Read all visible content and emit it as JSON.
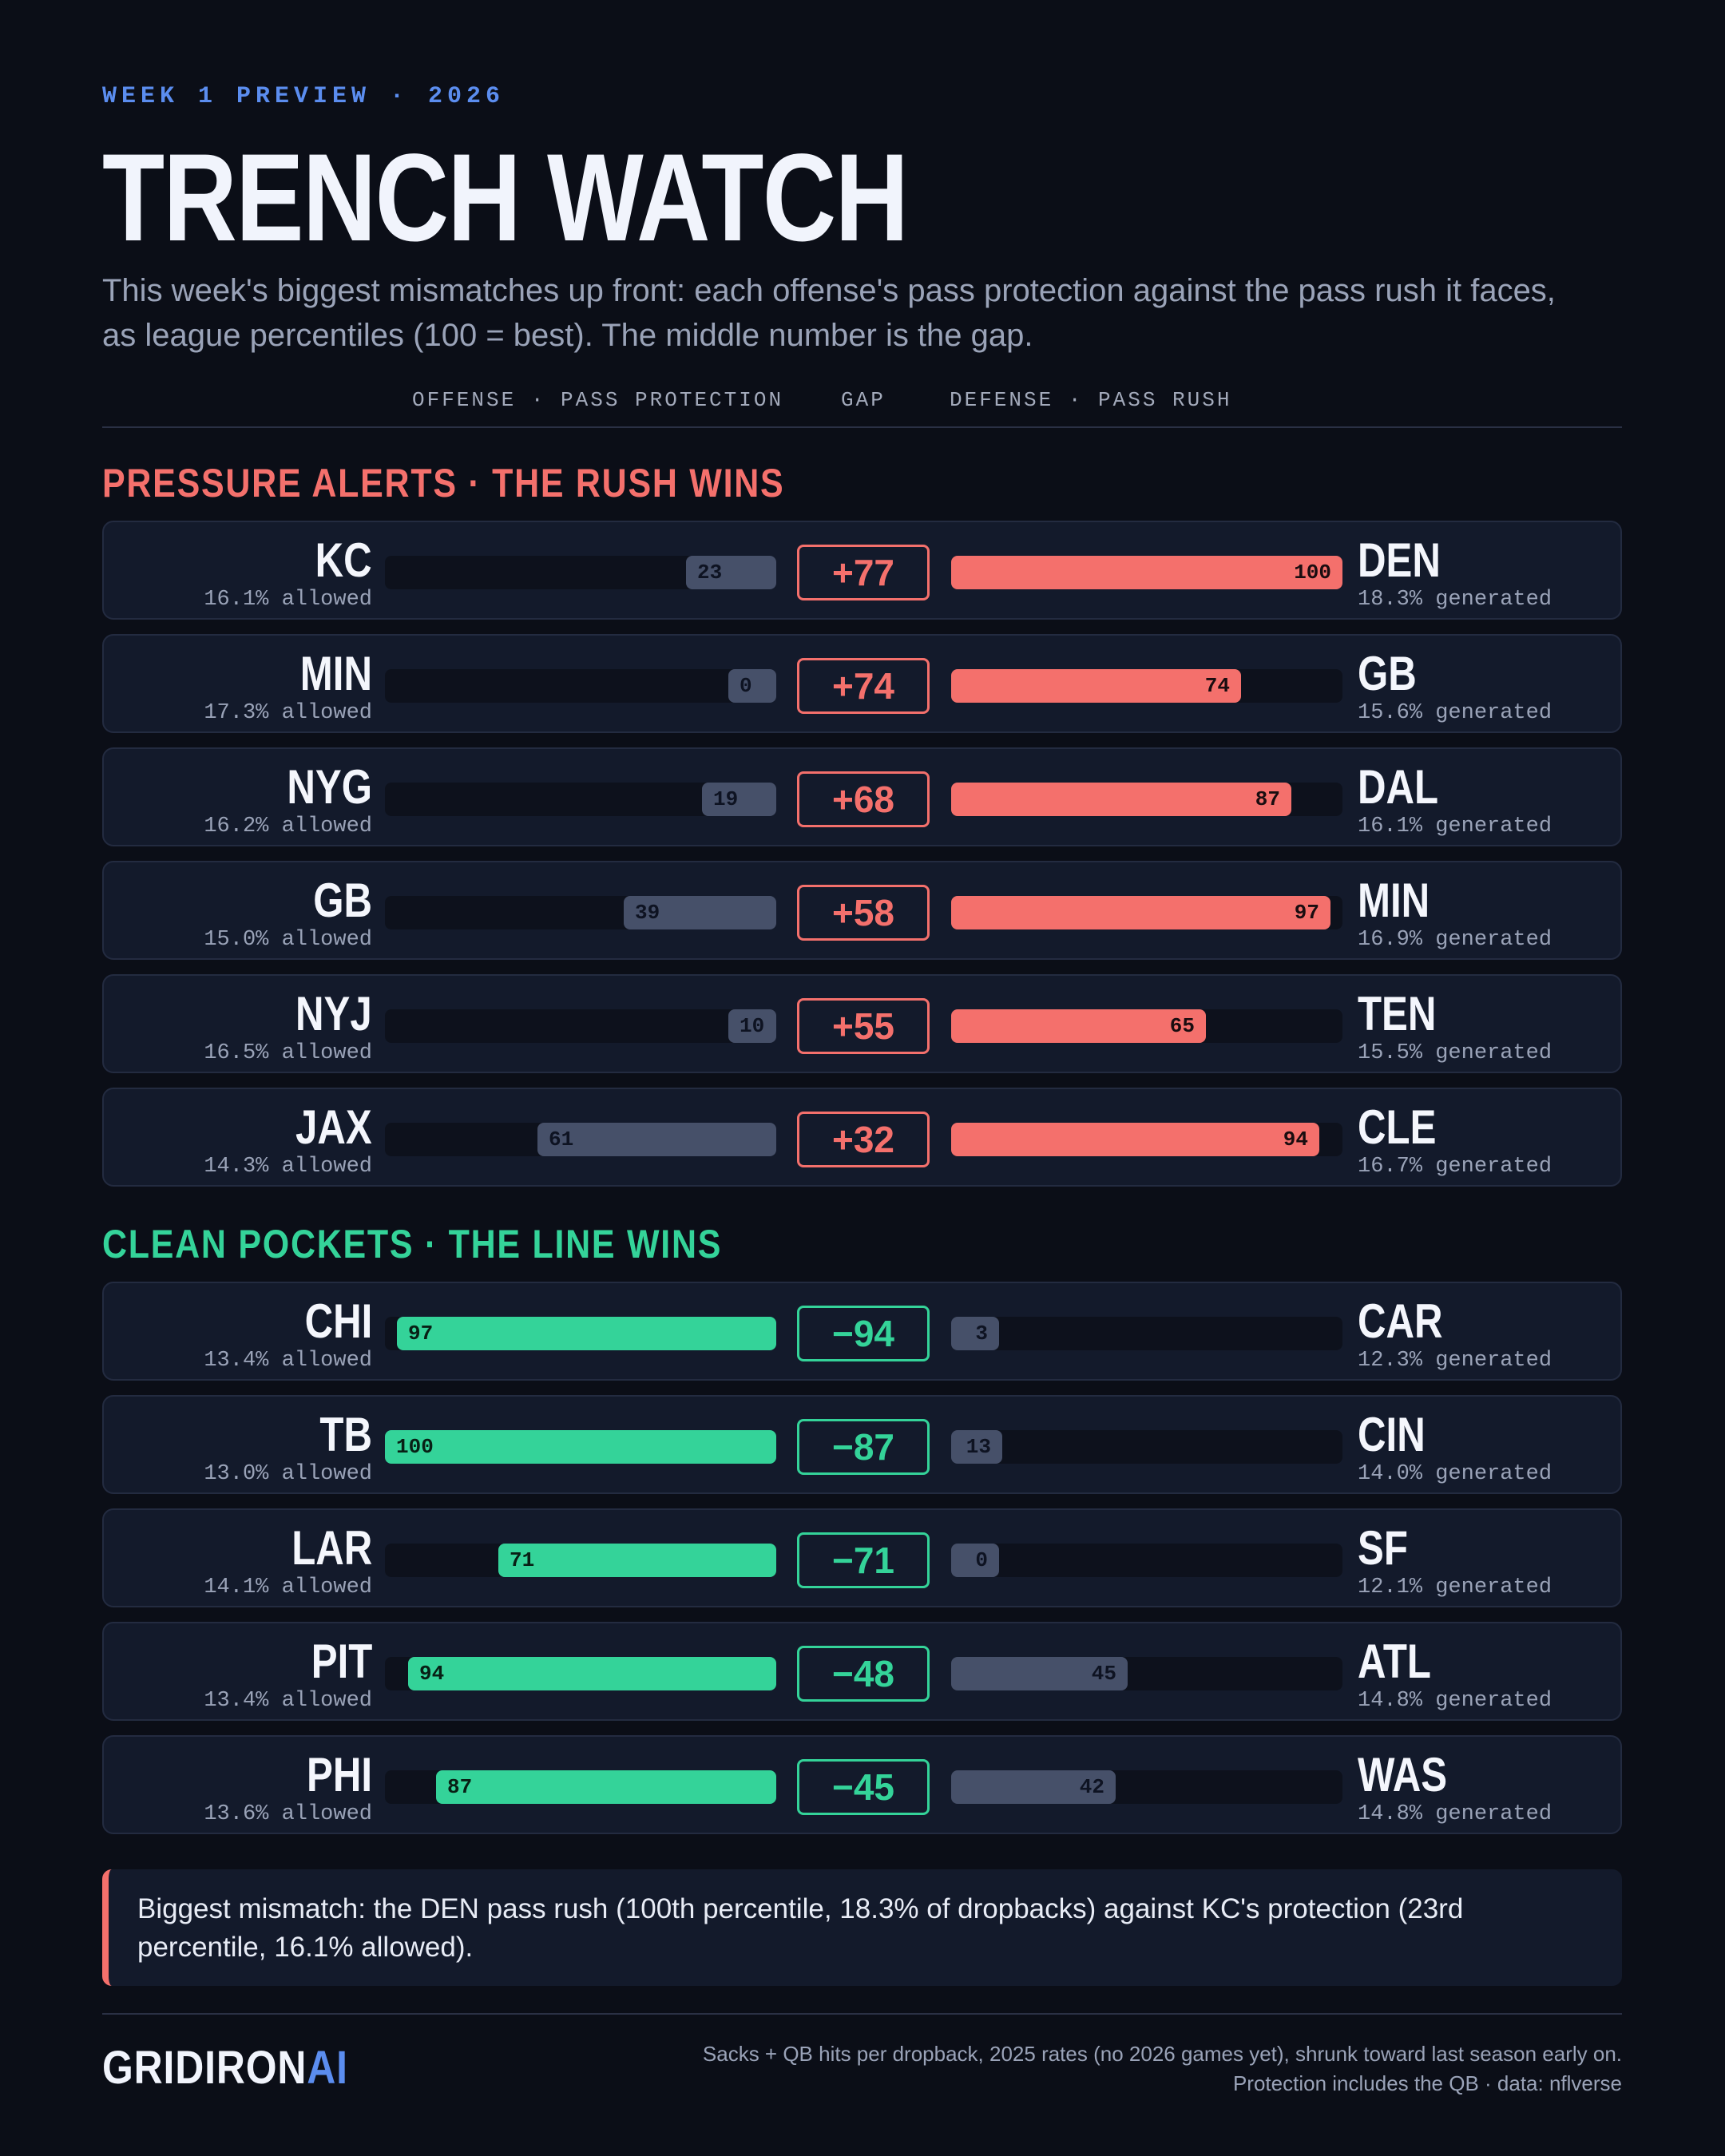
{
  "header": {
    "eyebrow": "WEEK 1 PREVIEW · 2026",
    "title": "TRENCH WATCH",
    "subtitle": "This week's biggest mismatches up front: each offense's pass protection against the pass rush it faces, as league percentiles (100 = best). The middle number is the gap."
  },
  "columns": {
    "offense": "OFFENSE · PASS PROTECTION",
    "gap": "GAP",
    "defense": "DEFENSE · PASS RUSH"
  },
  "colors": {
    "background": "#0b0e17",
    "card": "#131a2b",
    "rush_wins": "#f4706c",
    "line_wins": "#34d399",
    "neutral_bar": "#465069",
    "accent": "#5b8def"
  },
  "chart_data": {
    "type": "bar",
    "scale": [
      0,
      100
    ],
    "sections": [
      {
        "title": "PRESSURE ALERTS · THE RUSH WINS",
        "winner": "defense",
        "rows": [
          {
            "offense": "KC",
            "off_rate": "16.1% allowed",
            "off_pct": 23,
            "gap": "+77",
            "defense": "DEN",
            "def_rate": "18.3% generated",
            "def_pct": 100
          },
          {
            "offense": "MIN",
            "off_rate": "17.3% allowed",
            "off_pct": 0,
            "gap": "+74",
            "defense": "GB",
            "def_rate": "15.6% generated",
            "def_pct": 74
          },
          {
            "offense": "NYG",
            "off_rate": "16.2% allowed",
            "off_pct": 19,
            "gap": "+68",
            "defense": "DAL",
            "def_rate": "16.1% generated",
            "def_pct": 87
          },
          {
            "offense": "GB",
            "off_rate": "15.0% allowed",
            "off_pct": 39,
            "gap": "+58",
            "defense": "MIN",
            "def_rate": "16.9% generated",
            "def_pct": 97
          },
          {
            "offense": "NYJ",
            "off_rate": "16.5% allowed",
            "off_pct": 10,
            "gap": "+55",
            "defense": "TEN",
            "def_rate": "15.5% generated",
            "def_pct": 65
          },
          {
            "offense": "JAX",
            "off_rate": "14.3% allowed",
            "off_pct": 61,
            "gap": "+32",
            "defense": "CLE",
            "def_rate": "16.7% generated",
            "def_pct": 94
          }
        ]
      },
      {
        "title": "CLEAN POCKETS · THE LINE WINS",
        "winner": "offense",
        "rows": [
          {
            "offense": "CHI",
            "off_rate": "13.4% allowed",
            "off_pct": 97,
            "gap": "−94",
            "defense": "CAR",
            "def_rate": "12.3% generated",
            "def_pct": 3
          },
          {
            "offense": "TB",
            "off_rate": "13.0% allowed",
            "off_pct": 100,
            "gap": "−87",
            "defense": "CIN",
            "def_rate": "14.0% generated",
            "def_pct": 13
          },
          {
            "offense": "LAR",
            "off_rate": "14.1% allowed",
            "off_pct": 71,
            "gap": "−71",
            "defense": "SF",
            "def_rate": "12.1% generated",
            "def_pct": 0
          },
          {
            "offense": "PIT",
            "off_rate": "13.4% allowed",
            "off_pct": 94,
            "gap": "−48",
            "defense": "ATL",
            "def_rate": "14.8% generated",
            "def_pct": 45
          },
          {
            "offense": "PHI",
            "off_rate": "13.6% allowed",
            "off_pct": 87,
            "gap": "−45",
            "defense": "WAS",
            "def_rate": "14.8% generated",
            "def_pct": 42
          }
        ]
      }
    ]
  },
  "callout": "Biggest mismatch: the DEN pass rush (100th percentile, 18.3% of dropbacks) against KC's protection (23rd percentile, 16.1% allowed).",
  "footer": {
    "logo_main": "GRIDIRON",
    "logo_accent": "AI",
    "note_line1": "Sacks + QB hits per dropback, 2025 rates (no 2026 games yet), shrunk toward last season early on.",
    "note_line2": "Protection includes the QB · data: nflverse"
  }
}
